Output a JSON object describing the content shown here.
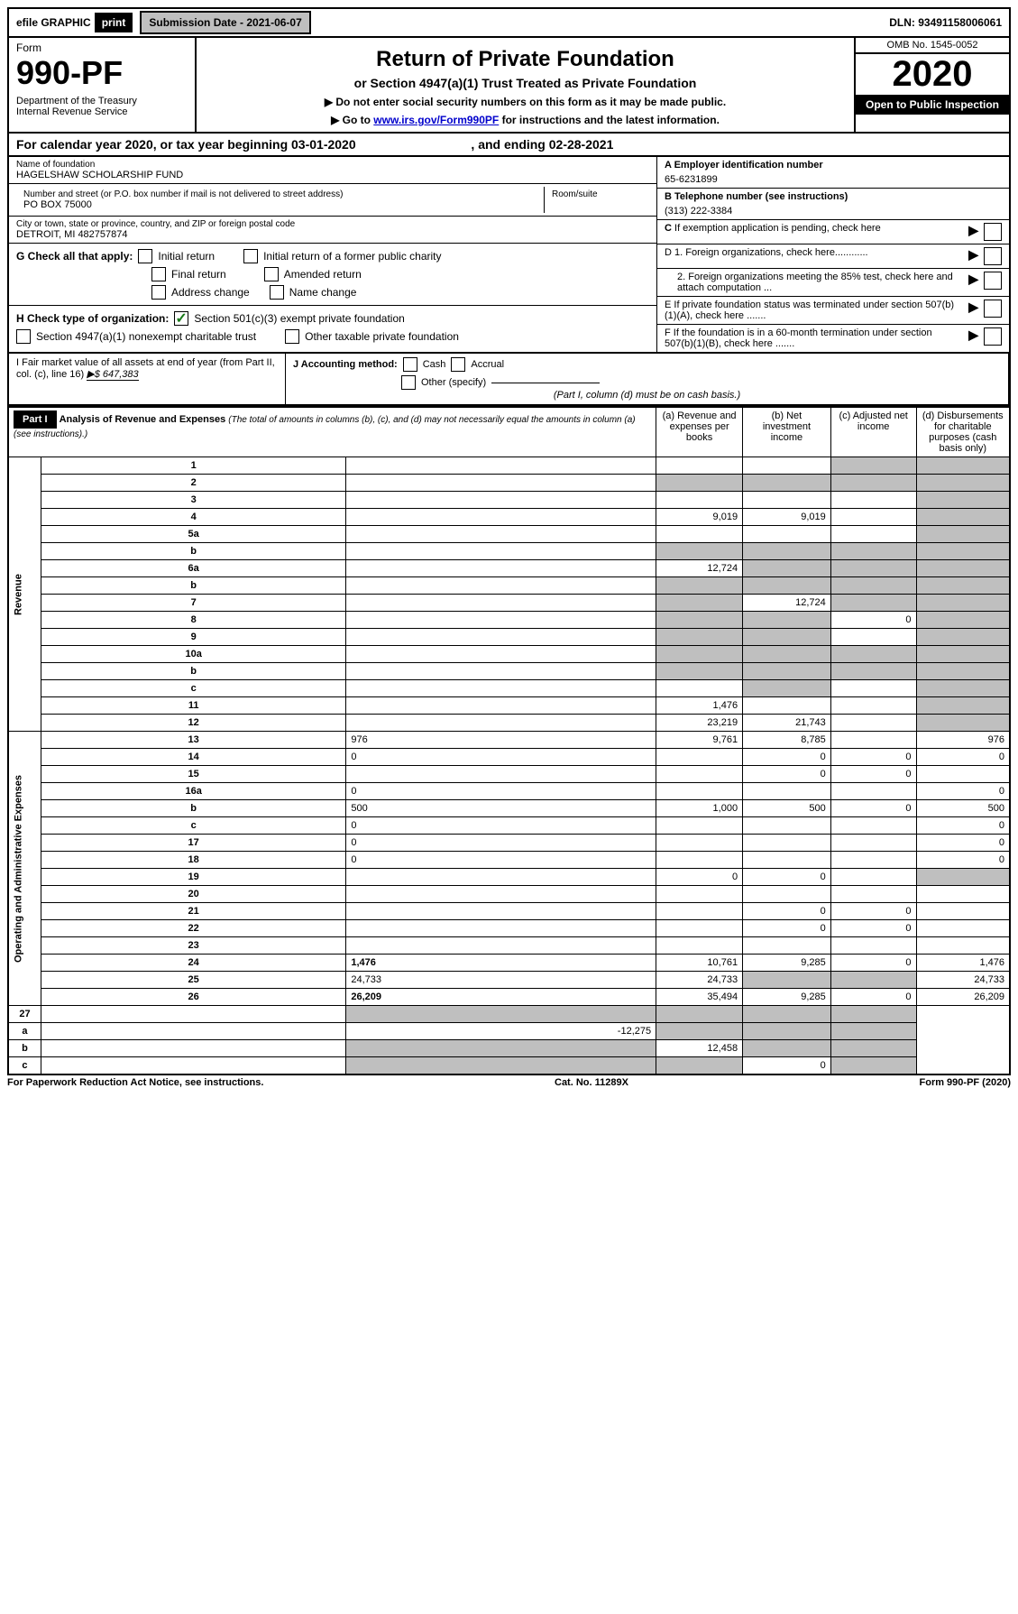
{
  "topbar": {
    "efile": "efile GRAPHIC",
    "print": "print",
    "submission": "Submission Date - 2021-06-07",
    "dln": "DLN: 93491158006061"
  },
  "header": {
    "form_label": "Form",
    "form_number": "990-PF",
    "dept": "Department of the Treasury\nInternal Revenue Service",
    "title": "Return of Private Foundation",
    "subtitle": "or Section 4947(a)(1) Trust Treated as Private Foundation",
    "note1": "▶ Do not enter social security numbers on this form as it may be made public.",
    "note2": "▶ Go to",
    "note2_link": "www.irs.gov/Form990PF",
    "note2_end": "for instructions and the latest information.",
    "omb": "OMB No. 1545-0052",
    "year": "2020",
    "open": "Open to Public Inspection"
  },
  "calyear": {
    "text_a": "For calendar year 2020, or tax year beginning 03-01-2020",
    "text_b": ", and ending 02-28-2021"
  },
  "foundation": {
    "name_label": "Name of foundation",
    "name": "HAGELSHAW SCHOLARSHIP FUND",
    "addr_label": "Number and street (or P.O. box number if mail is not delivered to street address)",
    "addr": "PO BOX 75000",
    "room_label": "Room/suite",
    "city_label": "City or town, state or province, country, and ZIP or foreign postal code",
    "city": "DETROIT, MI  482757874",
    "a_label": "A Employer identification number",
    "ein": "65-6231899",
    "b_label": "B Telephone number (see instructions)",
    "phone": "(313) 222-3384",
    "c_label": "C If exemption application is pending, check here"
  },
  "checks": {
    "g_label": "G Check all that apply:",
    "initial": "Initial return",
    "initial_former": "Initial return of a former public charity",
    "final": "Final return",
    "amended": "Amended return",
    "addr_change": "Address change",
    "name_change": "Name change",
    "h_label": "H Check type of organization:",
    "h_501c3": "Section 501(c)(3) exempt private foundation",
    "h_4947": "Section 4947(a)(1) nonexempt charitable trust",
    "h_other": "Other taxable private foundation",
    "d1": "D 1. Foreign organizations, check here............",
    "d2": "2. Foreign organizations meeting the 85% test, check here and attach computation ...",
    "e": "E  If private foundation status was terminated under section 507(b)(1)(A), check here .......",
    "f": "F  If the foundation is in a 60-month termination under section 507(b)(1)(B), check here ......."
  },
  "lower": {
    "i_label": "I Fair market value of all assets at end of year (from Part II, col. (c), line 16)",
    "i_value": "▶$  647,383",
    "j_label": "J Accounting method:",
    "j_cash": "Cash",
    "j_accrual": "Accrual",
    "j_other": "Other (specify)",
    "j_note": "(Part I, column (d) must be on cash basis.)"
  },
  "part1": {
    "label": "Part I",
    "title": "Analysis of Revenue and Expenses",
    "title_note": "(The total of amounts in columns (b), (c), and (d) may not necessarily equal the amounts in column (a) (see instructions).)",
    "col_a": "(a)   Revenue and expenses per books",
    "col_b": "(b)  Net investment income",
    "col_c": "(c)  Adjusted net income",
    "col_d": "(d)  Disbursements for charitable purposes (cash basis only)"
  },
  "sections": {
    "revenue": "Revenue",
    "expenses": "Operating and Administrative Expenses"
  },
  "rows": [
    {
      "n": "1",
      "d": "",
      "a": "",
      "b": "",
      "c": "",
      "d_sh": true,
      "c_sh": true
    },
    {
      "n": "2",
      "d": "",
      "a": "",
      "b": "",
      "c": "",
      "all_sh": true
    },
    {
      "n": "3",
      "d": "",
      "a": "",
      "b": "",
      "c": "",
      "d_sh": true
    },
    {
      "n": "4",
      "d": "",
      "a": "9,019",
      "b": "9,019",
      "c": "",
      "d_sh": true
    },
    {
      "n": "5a",
      "d": "",
      "a": "",
      "b": "",
      "c": "",
      "d_sh": true
    },
    {
      "n": "b",
      "d": "",
      "a": "",
      "b": "",
      "c": "",
      "all_sh": true
    },
    {
      "n": "6a",
      "d": "",
      "a": "12,724",
      "b": "",
      "c": "",
      "b_sh": true,
      "c_sh": true,
      "d_sh": true
    },
    {
      "n": "b",
      "d": "",
      "a": "",
      "b": "",
      "c": "",
      "all_sh": true
    },
    {
      "n": "7",
      "d": "",
      "a": "",
      "b": "12,724",
      "c": "",
      "a_sh": true,
      "c_sh": true,
      "d_sh": true
    },
    {
      "n": "8",
      "d": "",
      "a": "",
      "b": "",
      "c": "0",
      "a_sh": true,
      "b_sh": true,
      "d_sh": true
    },
    {
      "n": "9",
      "d": "",
      "a": "",
      "b": "",
      "c": "",
      "a_sh": true,
      "b_sh": true,
      "d_sh": true
    },
    {
      "n": "10a",
      "d": "",
      "a": "",
      "b": "",
      "c": "",
      "all_sh": true
    },
    {
      "n": "b",
      "d": "",
      "a": "",
      "b": "",
      "c": "",
      "all_sh": true
    },
    {
      "n": "c",
      "d": "",
      "a": "",
      "b": "",
      "c": "",
      "b_sh": true,
      "d_sh": true
    },
    {
      "n": "11",
      "d": "",
      "a": "1,476",
      "b": "",
      "c": "",
      "d_sh": true
    },
    {
      "n": "12",
      "d": "",
      "a": "23,219",
      "b": "21,743",
      "c": "",
      "d_sh": true,
      "bold": true
    }
  ],
  "exp_rows": [
    {
      "n": "13",
      "d": "976",
      "a": "9,761",
      "b": "8,785",
      "c": ""
    },
    {
      "n": "14",
      "d": "0",
      "a": "",
      "b": "0",
      "c": "0"
    },
    {
      "n": "15",
      "d": "",
      "a": "",
      "b": "0",
      "c": "0"
    },
    {
      "n": "16a",
      "d": "0",
      "a": "",
      "b": "",
      "c": ""
    },
    {
      "n": "b",
      "d": "500",
      "a": "1,000",
      "b": "500",
      "c": "0"
    },
    {
      "n": "c",
      "d": "0",
      "a": "",
      "b": "",
      "c": ""
    },
    {
      "n": "17",
      "d": "0",
      "a": "",
      "b": "",
      "c": ""
    },
    {
      "n": "18",
      "d": "0",
      "a": "",
      "b": "",
      "c": ""
    },
    {
      "n": "19",
      "d": "",
      "a": "0",
      "b": "0",
      "c": "",
      "d_sh": true
    },
    {
      "n": "20",
      "d": "",
      "a": "",
      "b": "",
      "c": ""
    },
    {
      "n": "21",
      "d": "",
      "a": "",
      "b": "0",
      "c": "0"
    },
    {
      "n": "22",
      "d": "",
      "a": "",
      "b": "0",
      "c": "0"
    },
    {
      "n": "23",
      "d": "",
      "a": "",
      "b": "",
      "c": ""
    },
    {
      "n": "24",
      "d": "1,476",
      "a": "10,761",
      "b": "9,285",
      "c": "0",
      "bold": true
    },
    {
      "n": "25",
      "d": "24,733",
      "a": "24,733",
      "b": "",
      "c": "",
      "b_sh": true,
      "c_sh": true
    },
    {
      "n": "26",
      "d": "26,209",
      "a": "35,494",
      "b": "9,285",
      "c": "0",
      "bold": true
    }
  ],
  "final_rows": [
    {
      "n": "27",
      "d": "",
      "a": "",
      "b": "",
      "c": "",
      "all_sh": true
    },
    {
      "n": "a",
      "d": "",
      "a": "-12,275",
      "b": "",
      "c": "",
      "b_sh": true,
      "c_sh": true,
      "d_sh": true,
      "bold": true
    },
    {
      "n": "b",
      "d": "",
      "a": "",
      "b": "12,458",
      "c": "",
      "a_sh": true,
      "c_sh": true,
      "d_sh": true,
      "bold": true
    },
    {
      "n": "c",
      "d": "",
      "a": "",
      "b": "",
      "c": "0",
      "a_sh": true,
      "b_sh": true,
      "d_sh": true,
      "bold": true
    }
  ],
  "footer": {
    "left": "For Paperwork Reduction Act Notice, see instructions.",
    "mid": "Cat. No. 11289X",
    "right": "Form 990-PF (2020)"
  }
}
